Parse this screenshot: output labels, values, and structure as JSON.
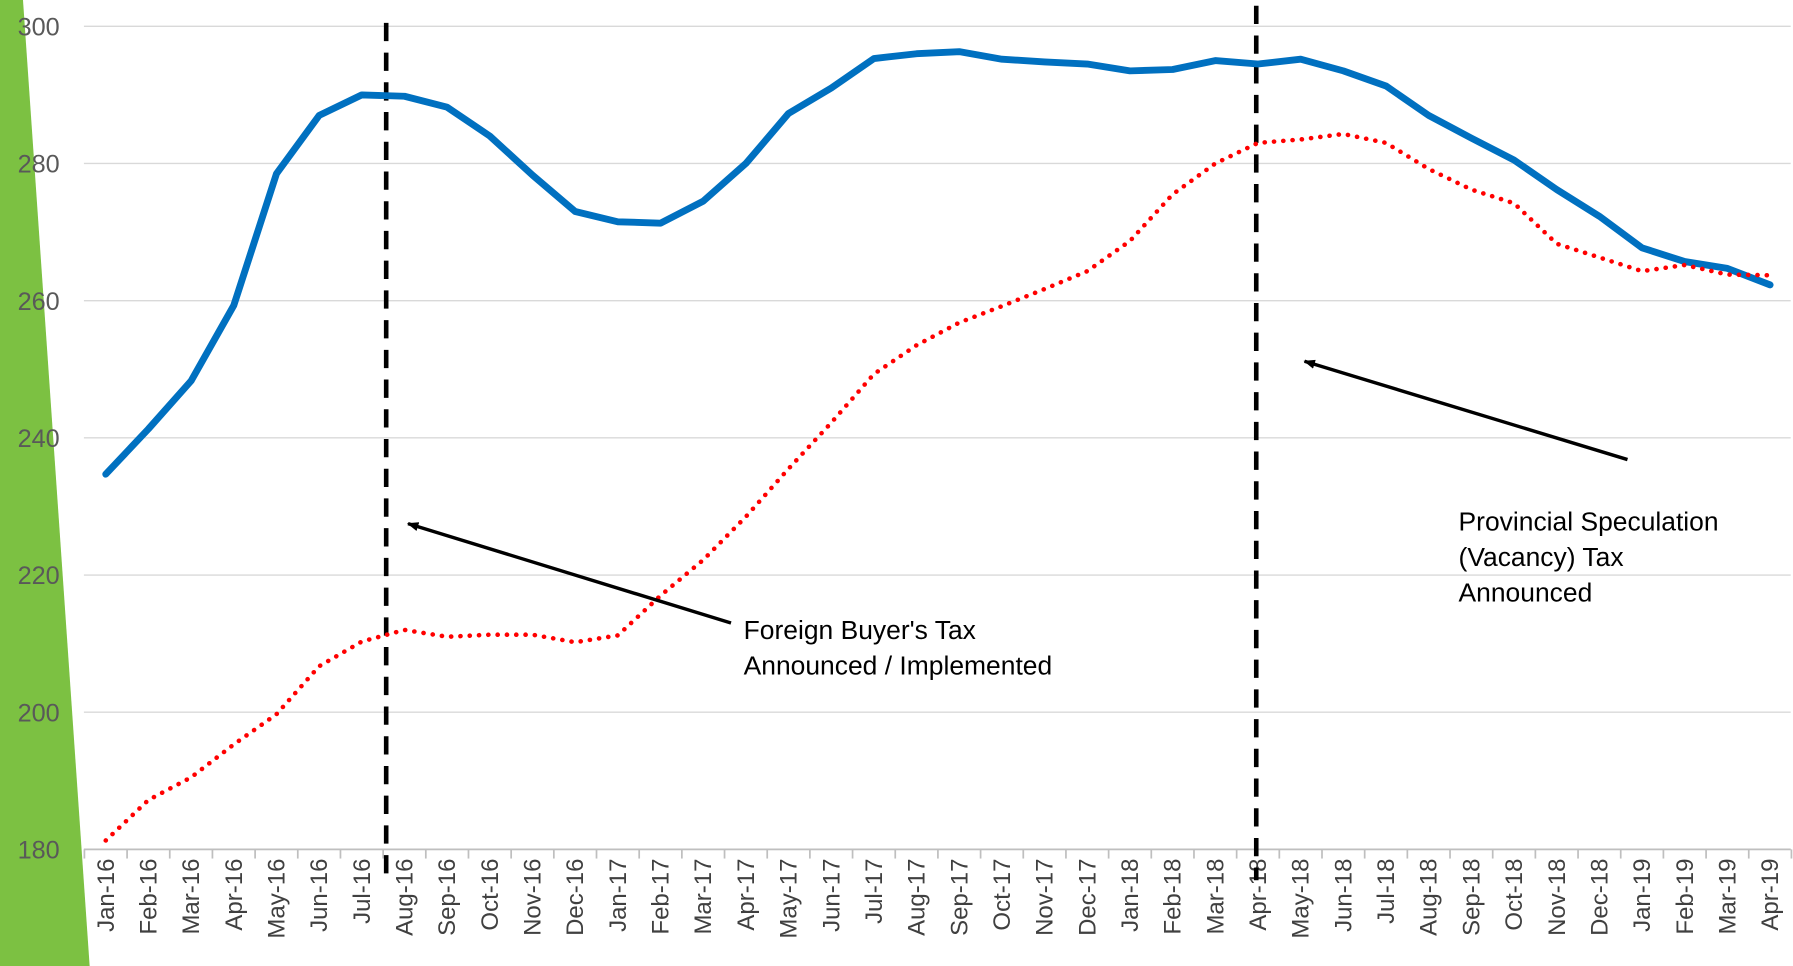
{
  "chart_data": {
    "type": "line",
    "categories": [
      "Jan-16",
      "Feb-16",
      "Mar-16",
      "Apr-16",
      "May-16",
      "Jun-16",
      "Jul-16",
      "Aug-16",
      "Sep-16",
      "Oct-16",
      "Nov-16",
      "Dec-16",
      "Jan-17",
      "Feb-17",
      "Mar-17",
      "Apr-17",
      "May-17",
      "Jun-17",
      "Jul-17",
      "Aug-17",
      "Sep-17",
      "Oct-17",
      "Nov-17",
      "Dec-17",
      "Jan-18",
      "Feb-18",
      "Mar-18",
      "Apr-18",
      "May-18",
      "Jun-18",
      "Jul-18",
      "Aug-18",
      "Sep-18",
      "Oct-18",
      "Nov-18",
      "Dec-18",
      "Jan-19",
      "Feb-19",
      "Mar-19",
      "Apr-19"
    ],
    "series": [
      {
        "color": "#0070c0",
        "style": "solid",
        "values": [
          234.7,
          241.3,
          248.3,
          259.3,
          278.5,
          287,
          290,
          289.8,
          288.2,
          284,
          278.3,
          273,
          271.5,
          271.3,
          274.5,
          280,
          287.3,
          291,
          295.3,
          296,
          296.3,
          295.2,
          294.8,
          294.5,
          293.5,
          293.7,
          295,
          294.5,
          295.2,
          293.5,
          291.3,
          287,
          283.7,
          280.5,
          276.2,
          272.3,
          267.7,
          265.7,
          264.7,
          262.3
        ]
      },
      {
        "color": "#ff0000",
        "style": "dotted",
        "values": [
          181.3,
          187.2,
          190.5,
          195.3,
          199.7,
          206.7,
          210.3,
          212,
          211,
          211.3,
          211.3,
          210.2,
          211.2,
          217,
          222.2,
          228.5,
          235.5,
          242.2,
          249.3,
          253.5,
          256.8,
          259.2,
          261.7,
          264.3,
          268.7,
          275.5,
          280,
          283,
          283.5,
          284.3,
          283,
          279.2,
          276.2,
          274.2,
          268.3,
          266.3,
          264.3,
          265.2,
          263.8,
          263.7
        ]
      }
    ],
    "ylim": [
      180,
      300
    ],
    "yticks": [
      180,
      200,
      220,
      240,
      260,
      280,
      300
    ],
    "grid": true,
    "annotations": [
      {
        "lines": [
          "Foreign Buyer's Tax",
          "Announced / Implemented"
        ]
      },
      {
        "lines": [
          "Provincial Speculation",
          "(Vacancy) Tax",
          "Announced"
        ]
      }
    ]
  }
}
